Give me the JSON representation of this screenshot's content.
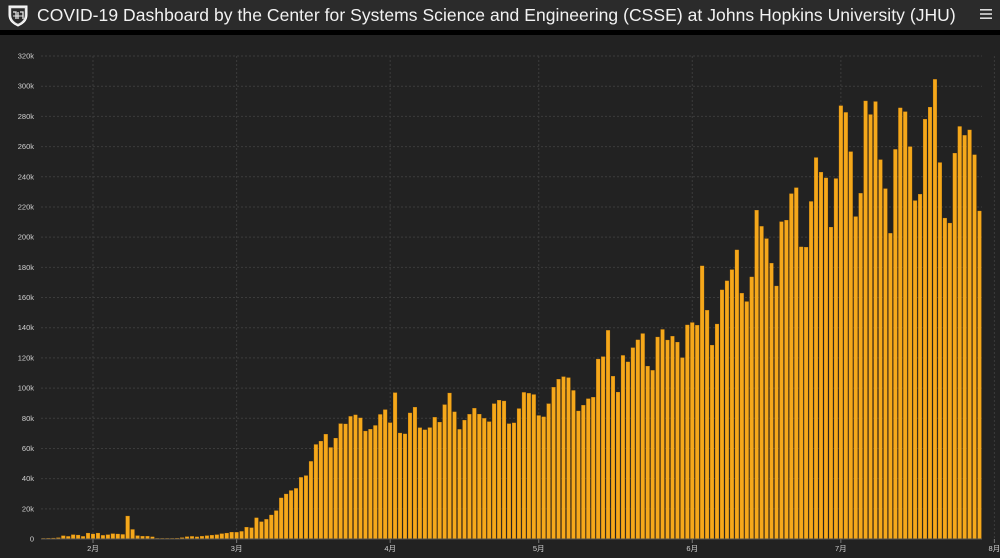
{
  "header": {
    "title": "COVID-19 Dashboard by the Center for Systems Science and Engineering (CSSE) at Johns Hopkins University (JHU)",
    "logo_icon": "jhu-shield-icon",
    "menu_icon": "hamburger-menu-icon"
  },
  "colors": {
    "header_bg": "#2b2b2b",
    "page_bg": "#222222",
    "bar": "#f5a81b",
    "bar_edge": "#e38f09",
    "grid": "#3c3c3c",
    "axis_text": "#d0d0d0"
  },
  "chart_data": {
    "type": "bar",
    "title": "",
    "xlabel": "",
    "ylabel": "",
    "ylim": [
      0,
      320000
    ],
    "yticks": [
      0,
      20000,
      40000,
      60000,
      80000,
      100000,
      120000,
      140000,
      160000,
      180000,
      200000,
      220000,
      240000,
      260000,
      280000,
      300000,
      320000
    ],
    "ytick_labels": [
      "0",
      "20k",
      "40k",
      "60k",
      "80k",
      "100k",
      "120k",
      "140k",
      "160k",
      "180k",
      "200k",
      "220k",
      "240k",
      "260k",
      "280k",
      "300k",
      "320k"
    ],
    "xtick_labels": [
      "2月",
      "3月",
      "4月",
      "5月",
      "6月",
      "7月",
      "8月"
    ],
    "xtick_index": [
      10,
      39,
      70,
      100,
      131,
      161,
      192
    ],
    "grid": true,
    "legend": "none",
    "values": [
      100,
      500,
      600,
      800,
      2100,
      1700,
      2800,
      2600,
      1700,
      3900,
      3300,
      3900,
      2400,
      2800,
      3500,
      3300,
      3000,
      15200,
      6300,
      2200,
      1800,
      1800,
      1400,
      300,
      300,
      300,
      300,
      500,
      900,
      1500,
      1700,
      1400,
      1800,
      2200,
      2500,
      2800,
      3500,
      3900,
      4500,
      4400,
      5000,
      7800,
      7400,
      14000,
      11400,
      13000,
      15900,
      18800,
      27200,
      29800,
      32100,
      33500,
      40800,
      42000,
      51400,
      62600,
      64800,
      69400,
      60600,
      66800,
      76400,
      76200,
      81200,
      82200,
      80200,
      71500,
      72700,
      75200,
      82500,
      85700,
      77000,
      96900,
      70200,
      69600,
      83500,
      87300,
      73700,
      72300,
      73800,
      80600,
      77400,
      89000,
      96700,
      84200,
      72600,
      78700,
      82600,
      86600,
      82700,
      79900,
      77700,
      89600,
      91900,
      91400,
      76300,
      76900,
      86400,
      97100,
      96500,
      95700,
      81800,
      80900,
      89600,
      100500,
      105800,
      107500,
      106900,
      98400,
      84800,
      88600,
      92900,
      93900,
      119200,
      120800,
      138200,
      107800,
      97300,
      121600,
      117300,
      126700,
      131900,
      136100,
      114500,
      111700,
      133800,
      138800,
      131800,
      134300,
      130400,
      120100,
      141800,
      143400,
      141600,
      180900,
      151500,
      128400,
      142400,
      165000,
      171000,
      178400,
      191500,
      162800,
      157300,
      173600,
      217800,
      207100,
      199000,
      182700,
      167600,
      210200,
      211200,
      228800,
      232700,
      193500,
      193300,
      223600,
      252700,
      243000,
      239200,
      206600,
      238800,
      287000,
      282600,
      256600,
      213600,
      229000,
      290200,
      281200,
      289800,
      251300,
      232100,
      202500,
      258100,
      285600,
      283100,
      259900,
      224200,
      228400,
      278100,
      286100,
      304500,
      249400,
      212600,
      209300,
      255600,
      273300,
      267400,
      271000,
      254500,
      217300
    ]
  }
}
